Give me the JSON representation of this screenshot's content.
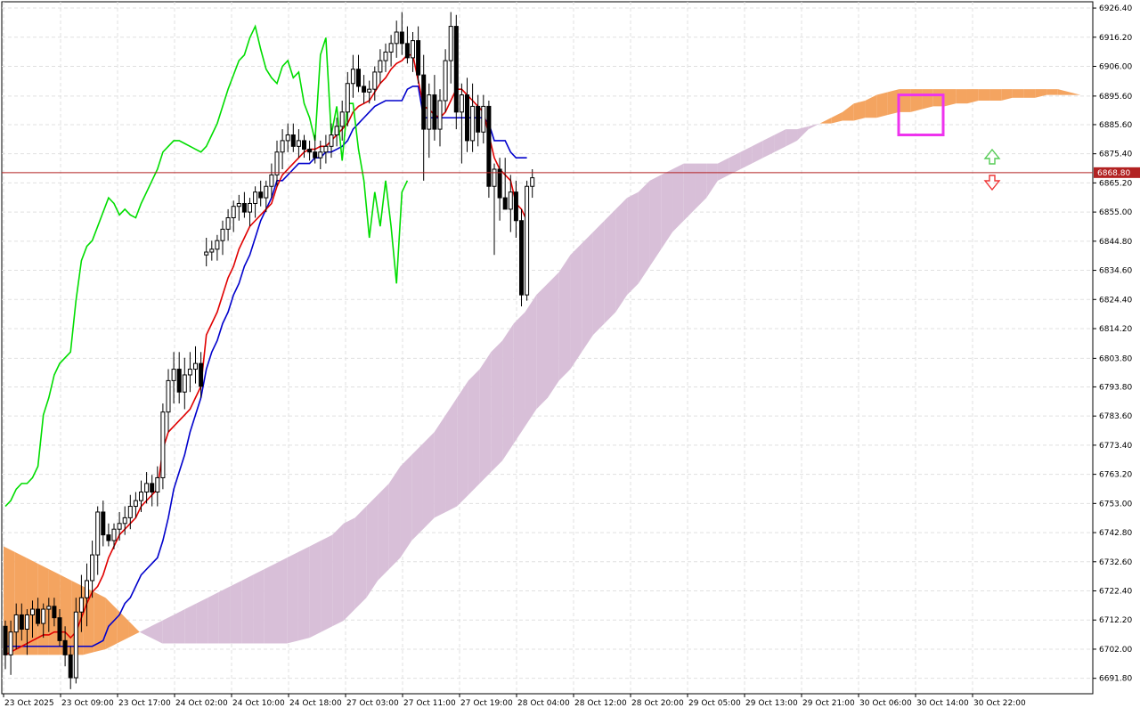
{
  "chart_data": {
    "type": "candlestick",
    "indicator": "Ichimoku Kinko Hyo",
    "y_axis": {
      "ticks": [
        6926.4,
        6916.2,
        6906.0,
        6895.6,
        6885.6,
        6875.4,
        6865.2,
        6855.0,
        6844.8,
        6834.6,
        6824.4,
        6814.2,
        6803.8,
        6793.8,
        6783.6,
        6773.4,
        6763.2,
        6753.0,
        6742.8,
        6732.6,
        6722.4,
        6712.2,
        6702.0,
        6691.8
      ],
      "ylim": [
        6686.4,
        6928.6
      ]
    },
    "x_axis": {
      "labels": [
        "23 Oct 2025",
        "23 Oct 09:00",
        "23 Oct 17:00",
        "24 Oct 02:00",
        "24 Oct 10:00",
        "24 Oct 18:00",
        "27 Oct 03:00",
        "27 Oct 11:00",
        "27 Oct 19:00",
        "28 Oct 04:00",
        "28 Oct 12:00",
        "28 Oct 20:00",
        "29 Oct 05:00",
        "29 Oct 13:00",
        "29 Oct 21:00",
        "30 Oct 06:00",
        "30 Oct 14:00",
        "30 Oct 22:00"
      ]
    },
    "current_price": {
      "value": "6868.80",
      "color": "#b22222"
    },
    "colors": {
      "tenkan": "#e00000",
      "kijun": "#0000cc",
      "chikou": "#00dd00",
      "kumo_bull": "#f4a460",
      "kumo_bear": "#d8bfd8",
      "bull_candle": "#ffffff",
      "bear_candle": "#000000",
      "highlight": "#ee33ee",
      "grid": "#e0e0e0",
      "arrow_up": "#55cc55",
      "arrow_down": "#ee3333"
    },
    "grid": true,
    "candles": [
      [
        6710,
        6712,
        6695,
        6700
      ],
      [
        6700,
        6712,
        6693,
        6708
      ],
      [
        6708,
        6718,
        6702,
        6714
      ],
      [
        6714,
        6718,
        6705,
        6709
      ],
      [
        6709,
        6716,
        6700,
        6714
      ],
      [
        6714,
        6719,
        6706,
        6716
      ],
      [
        6716,
        6720,
        6710,
        6711
      ],
      [
        6711,
        6718,
        6706,
        6716
      ],
      [
        6716,
        6720,
        6708,
        6717
      ],
      [
        6717,
        6720,
        6710,
        6713
      ],
      [
        6713,
        6716,
        6703,
        6705
      ],
      [
        6705,
        6710,
        6696,
        6700
      ],
      [
        6700,
        6703,
        6688,
        6692
      ],
      [
        6692,
        6720,
        6690,
        6715
      ],
      [
        6715,
        6728,
        6708,
        6720
      ],
      [
        6720,
        6732,
        6710,
        6726
      ],
      [
        6726,
        6740,
        6720,
        6735
      ],
      [
        6735,
        6752,
        6728,
        6750
      ],
      [
        6750,
        6754,
        6738,
        6742
      ],
      [
        6742,
        6746,
        6738,
        6740
      ],
      [
        6740,
        6746,
        6737,
        6744
      ],
      [
        6744,
        6750,
        6740,
        6746
      ],
      [
        6746,
        6752,
        6742,
        6748
      ],
      [
        6748,
        6756,
        6744,
        6752
      ],
      [
        6752,
        6757,
        6748,
        6754
      ],
      [
        6754,
        6761,
        6750,
        6757
      ],
      [
        6757,
        6764,
        6753,
        6760
      ],
      [
        6760,
        6763,
        6752,
        6757
      ],
      [
        6757,
        6766,
        6752,
        6762
      ],
      [
        6762,
        6788,
        6758,
        6785
      ],
      [
        6785,
        6800,
        6778,
        6796
      ],
      [
        6796,
        6806,
        6788,
        6800
      ],
      [
        6800,
        6806,
        6788,
        6792
      ],
      [
        6792,
        6804,
        6786,
        6798
      ],
      [
        6798,
        6806,
        6792,
        6800
      ],
      [
        6800,
        6808,
        6795,
        6802
      ],
      [
        6802,
        6806,
        6790,
        6794
      ],
      [
        6840,
        6846,
        6836,
        6841
      ],
      [
        6841,
        6845,
        6838,
        6842
      ],
      [
        6842,
        6847,
        6838,
        6845
      ],
      [
        6845,
        6852,
        6840,
        6849
      ],
      [
        6849,
        6856,
        6845,
        6853
      ],
      [
        6853,
        6859,
        6848,
        6857
      ],
      [
        6857,
        6861,
        6852,
        6858
      ],
      [
        6858,
        6862,
        6853,
        6855
      ],
      [
        6855,
        6860,
        6850,
        6858
      ],
      [
        6858,
        6864,
        6853,
        6862
      ],
      [
        6862,
        6866,
        6857,
        6860
      ],
      [
        6860,
        6866,
        6855,
        6864
      ],
      [
        6864,
        6872,
        6860,
        6868
      ],
      [
        6868,
        6880,
        6864,
        6876
      ],
      [
        6876,
        6884,
        6870,
        6880
      ],
      [
        6880,
        6886,
        6876,
        6882
      ],
      [
        6882,
        6886,
        6876,
        6878
      ],
      [
        6878,
        6884,
        6874,
        6880
      ],
      [
        6880,
        6882,
        6874,
        6877
      ],
      [
        6877,
        6880,
        6873,
        6876
      ],
      [
        6876,
        6882,
        6872,
        6874
      ],
      [
        6874,
        6880,
        6870,
        6876
      ],
      [
        6876,
        6882,
        6872,
        6878
      ],
      [
        6878,
        6886,
        6874,
        6882
      ],
      [
        6882,
        6888,
        6878,
        6885
      ],
      [
        6885,
        6894,
        6880,
        6890
      ],
      [
        6890,
        6904,
        6885,
        6900
      ],
      [
        6900,
        6910,
        6895,
        6905
      ],
      [
        6905,
        6910,
        6897,
        6899
      ],
      [
        6899,
        6903,
        6893,
        6897
      ],
      [
        6897,
        6901,
        6893,
        6898
      ],
      [
        6898,
        6906,
        6894,
        6904
      ],
      [
        6904,
        6912,
        6900,
        6908
      ],
      [
        6908,
        6914,
        6904,
        6911
      ],
      [
        6911,
        6917,
        6906,
        6914
      ],
      [
        6914,
        6922,
        6909,
        6918
      ],
      [
        6918,
        6925,
        6910,
        6914
      ],
      [
        6914,
        6920,
        6907,
        6909
      ],
      [
        6909,
        6918,
        6904,
        6915
      ],
      [
        6915,
        6920,
        6900,
        6903
      ],
      [
        6903,
        6910,
        6866,
        6884
      ],
      [
        6884,
        6900,
        6874,
        6896
      ],
      [
        6896,
        6903,
        6880,
        6884
      ],
      [
        6884,
        6898,
        6878,
        6894
      ],
      [
        6894,
        6912,
        6890,
        6908
      ],
      [
        6908,
        6925,
        6900,
        6920
      ],
      [
        6920,
        6924,
        6884,
        6890
      ],
      [
        6890,
        6900,
        6872,
        6896
      ],
      [
        6896,
        6902,
        6876,
        6880
      ],
      [
        6880,
        6900,
        6876,
        6892
      ],
      [
        6892,
        6896,
        6878,
        6883
      ],
      [
        6883,
        6896,
        6879,
        6892
      ],
      [
        6892,
        6894,
        6860,
        6864
      ],
      [
        6864,
        6872,
        6840,
        6870
      ],
      [
        6870,
        6874,
        6852,
        6860
      ],
      [
        6860,
        6874,
        6856,
        6856
      ],
      [
        6856,
        6868,
        6848,
        6862
      ],
      [
        6862,
        6866,
        6846,
        6852
      ],
      [
        6852,
        6856,
        6822,
        6826
      ],
      [
        6826,
        6866,
        6824,
        6864
      ],
      [
        6864,
        6870,
        6860,
        6867
      ]
    ],
    "tenkan": [
      6700,
      6701,
      6702,
      6703,
      6704,
      6705,
      6706,
      6707,
      6707,
      6708,
      6708,
      6708,
      6706,
      6708,
      6713,
      6718,
      6722,
      6724,
      6728,
      6734,
      6738,
      6742,
      6744,
      6746,
      6748,
      6752,
      6754,
      6756,
      6758,
      6772,
      6778,
      6780,
      6782,
      6784,
      6786,
      6790,
      6794,
      6812,
      6816,
      6820,
      6826,
      6832,
      6836,
      6842,
      6846,
      6850,
      6852,
      6854,
      6856,
      6858,
      6864,
      6868,
      6870,
      6872,
      6874,
      6876,
      6877,
      6877,
      6878,
      6878,
      6880,
      6882,
      6884,
      6886,
      6890,
      6892,
      6893,
      6894,
      6897,
      6900,
      6902,
      6905,
      6907,
      6908,
      6910,
      6910,
      6901,
      6892,
      6891,
      6889,
      6888,
      6890,
      6894,
      6898,
      6898,
      6896,
      6894,
      6892,
      6890,
      6882,
      6874,
      6870,
      6868,
      6866,
      6858,
      6856,
      6852
    ],
    "kijun": [
      6703,
      6703,
      6703,
      6703,
      6703,
      6703,
      6703,
      6703,
      6703,
      6703,
      6703,
      6703,
      6703,
      6703,
      6703,
      6703,
      6703,
      6704,
      6705,
      6710,
      6712,
      6714,
      6718,
      6720,
      6724,
      6728,
      6730,
      6732,
      6734,
      6740,
      6748,
      6758,
      6764,
      6770,
      6778,
      6784,
      6790,
      6800,
      6806,
      6810,
      6816,
      6820,
      6826,
      6830,
      6836,
      6840,
      6846,
      6852,
      6856,
      6860,
      6866,
      6866,
      6868,
      6870,
      6872,
      6872,
      6872,
      6874,
      6874,
      6876,
      6876,
      6877,
      6878,
      6880,
      6884,
      6886,
      6888,
      6890,
      6892,
      6893,
      6894,
      6894,
      6894,
      6894,
      6898,
      6899,
      6899,
      6888,
      6888,
      6888,
      6888,
      6888,
      6888,
      6888,
      6888,
      6888,
      6888,
      6888,
      6888,
      6886,
      6880,
      6880,
      6880,
      6876,
      6874,
      6874,
      6874
    ],
    "chikou": [
      6752,
      6754,
      6758,
      6760,
      6760,
      6762,
      6766,
      6784,
      6790,
      6798,
      6802,
      6804,
      6806,
      6824,
      6838,
      6843,
      6845,
      6850,
      6855,
      6860,
      6858,
      6854,
      6856,
      6854,
      6853,
      6858,
      6862,
      6866,
      6870,
      6876,
      6878,
      6880,
      6880,
      6879,
      6878,
      6877,
      6876,
      6878,
      6882,
      6886,
      6892,
      6898,
      6903,
      6908,
      6910,
      6916,
      6920,
      6912,
      6905,
      6902,
      6900,
      6906,
      6908,
      6902,
      6904,
      6893,
      6888,
      6880,
      6910,
      6916,
      6882,
      6892,
      6873,
      6893,
      6893,
      6877,
      6866,
      6846,
      6862,
      6850,
      6866,
      6850,
      6830,
      6862,
      6866
    ],
    "senkou_a": [
      6738,
      6736,
      6734,
      6732,
      6730,
      6728,
      6726,
      6724,
      6722,
      6720,
      6716,
      6712,
      6708,
      6706,
      6704,
      6704,
      6704,
      6704,
      6704,
      6704,
      6704,
      6704,
      6704,
      6704,
      6704,
      6704,
      6705,
      6706,
      6708,
      6710,
      6712,
      6716,
      6720,
      6726,
      6730,
      6734,
      6740,
      6744,
      6748,
      6750,
      6752,
      6756,
      6760,
      6764,
      6768,
      6774,
      6780,
      6786,
      6790,
      6796,
      6800,
      6806,
      6812,
      6816,
      6820,
      6826,
      6830,
      6836,
      6842,
      6848,
      6852,
      6856,
      6860,
      6866,
      6868,
      6870,
      6872,
      6874,
      6876,
      6878,
      6880,
      6884,
      6886,
      6888,
      6890,
      6893,
      6894,
      6896,
      6897,
      6898,
      6898,
      6898,
      6898,
      6898,
      6898,
      6898,
      6898,
      6898,
      6898,
      6898,
      6898,
      6898,
      6898,
      6898,
      6897,
      6896,
      6896
    ],
    "senkou_b": [
      6700,
      6700,
      6700,
      6700,
      6700,
      6700,
      6700,
      6700,
      6701,
      6702,
      6704,
      6706,
      6708,
      6710,
      6712,
      6714,
      6716,
      6718,
      6720,
      6722,
      6724,
      6726,
      6728,
      6730,
      6732,
      6734,
      6736,
      6738,
      6740,
      6742,
      6746,
      6748,
      6752,
      6756,
      6760,
      6766,
      6770,
      6774,
      6778,
      6784,
      6790,
      6796,
      6800,
      6806,
      6810,
      6816,
      6820,
      6826,
      6830,
      6834,
      6840,
      6844,
      6848,
      6852,
      6856,
      6860,
      6862,
      6866,
      6868,
      6870,
      6872,
      6872,
      6872,
      6872,
      6874,
      6876,
      6878,
      6880,
      6882,
      6884,
      6884,
      6885,
      6886,
      6886,
      6887,
      6887,
      6888,
      6888,
      6889,
      6890,
      6890,
      6891,
      6892,
      6892,
      6893,
      6893,
      6894,
      6894,
      6894,
      6895,
      6895,
      6895,
      6896,
      6896,
      6896,
      6896,
      6896
    ]
  }
}
